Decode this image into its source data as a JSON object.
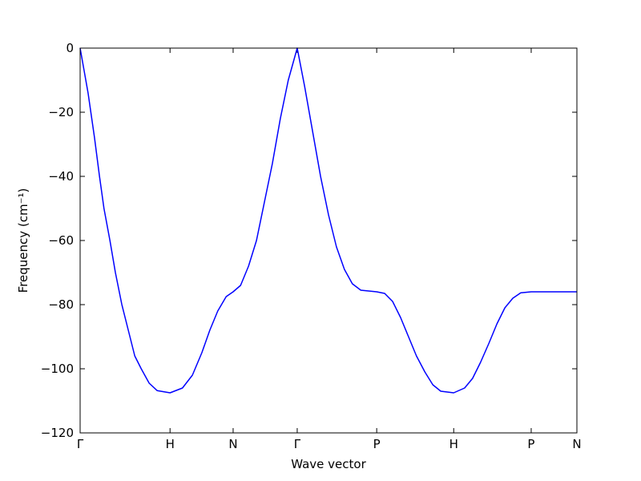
{
  "chart_data": {
    "type": "line",
    "xlabel": "Wave vector",
    "ylabel": "Frequency (cm⁻¹)",
    "x": [
      0,
      0.016,
      0.029,
      0.039,
      0.048,
      0.06,
      0.071,
      0.084,
      0.097,
      0.11,
      0.123,
      0.139,
      0.155,
      0.181,
      0.206,
      0.226,
      0.245,
      0.261,
      0.277,
      0.294,
      0.308,
      0.323,
      0.339,
      0.355,
      0.371,
      0.387,
      0.403,
      0.419,
      0.437,
      0.452,
      0.468,
      0.484,
      0.5,
      0.516,
      0.532,
      0.548,
      0.565,
      0.597,
      0.613,
      0.629,
      0.645,
      0.661,
      0.677,
      0.694,
      0.71,
      0.726,
      0.752,
      0.774,
      0.79,
      0.806,
      0.823,
      0.839,
      0.855,
      0.871,
      0.887,
      0.908,
      1
    ],
    "values": [
      0,
      -14,
      -28,
      -40,
      -50,
      -60,
      -70,
      -80,
      -88,
      -96,
      -100,
      -104.5,
      -106.8,
      -107.5,
      -106,
      -102,
      -95,
      -88,
      -82,
      -77.5,
      -76,
      -74,
      -68,
      -60,
      -48,
      -36,
      -22,
      -10,
      0,
      -12,
      -26,
      -40,
      -52,
      -62,
      -69,
      -73.5,
      -75.5,
      -76,
      -76.5,
      -79,
      -84,
      -90,
      -96,
      -101,
      -105,
      -107,
      -107.5,
      -106,
      -103,
      -98,
      -92,
      -86,
      -81,
      -78,
      -76.3,
      -76,
      -76
    ],
    "color": "#0000ff",
    "xlim": [
      0,
      1
    ],
    "xticks": [
      {
        "value": 0,
        "label": "Γ"
      },
      {
        "value": 0.181,
        "label": "H"
      },
      {
        "value": 0.308,
        "label": "N"
      },
      {
        "value": 0.437,
        "label": "Γ"
      },
      {
        "value": 0.597,
        "label": "P"
      },
      {
        "value": 0.752,
        "label": "H"
      },
      {
        "value": 0.908,
        "label": "P"
      },
      {
        "value": 1,
        "label": "N"
      }
    ],
    "ylim": [
      -120,
      0
    ],
    "yticks": [
      {
        "value": -120,
        "label": "−120"
      },
      {
        "value": -100,
        "label": "−100"
      },
      {
        "value": -80,
        "label": "−80"
      },
      {
        "value": -60,
        "label": "−60"
      },
      {
        "value": -40,
        "label": "−40"
      },
      {
        "value": -20,
        "label": "−20"
      },
      0
    ],
    "grid": false
  }
}
